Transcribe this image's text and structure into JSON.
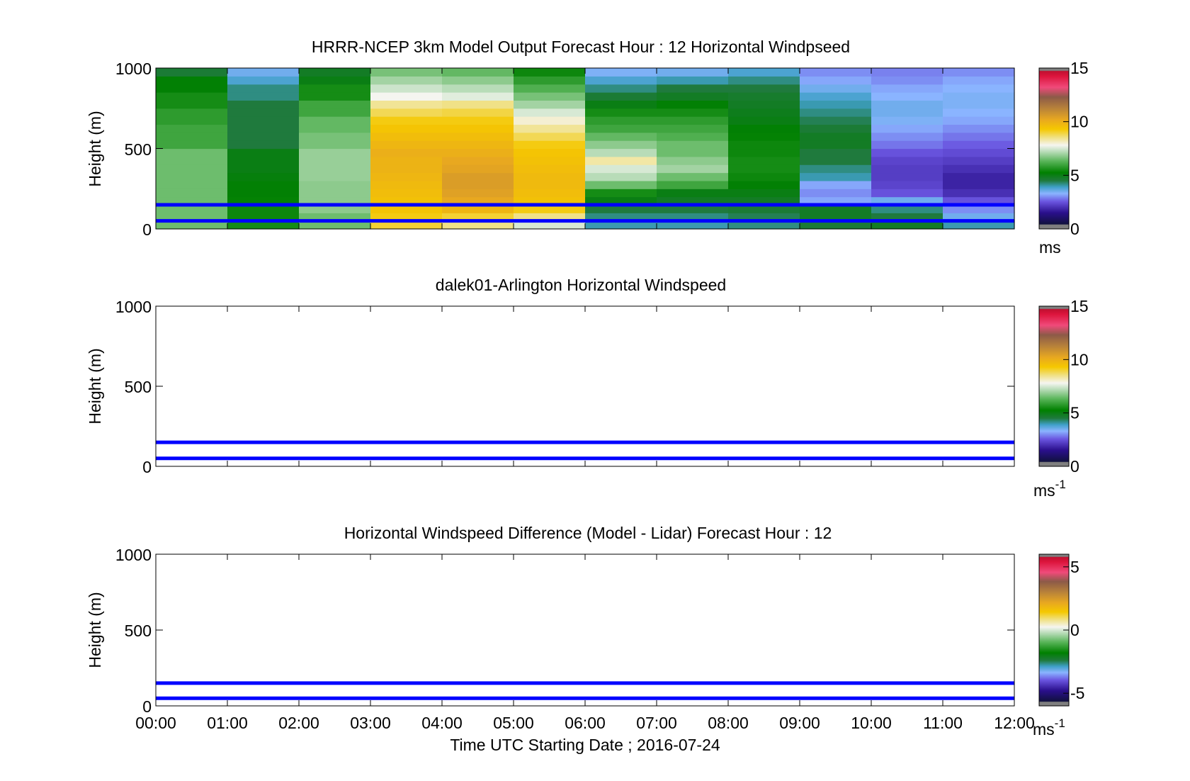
{
  "chart_data": [
    {
      "type": "heatmap",
      "title": "HRRR-NCEP 3km Model Output   Forecast Hour : 12 Horizontal Windpseed",
      "ylabel": "Height (m)",
      "xlabel": "",
      "ylim": [
        0,
        1000
      ],
      "yticks": [
        "0",
        "500",
        "1000"
      ],
      "xlim_hours": [
        0,
        12
      ],
      "colorbar": {
        "ticks": [
          "0",
          "5",
          "10",
          "15"
        ],
        "tick_values": [
          0,
          5,
          10,
          15
        ],
        "range": [
          0,
          15
        ],
        "unit": "ms",
        "unit_sup": ""
      },
      "rows_bottom_to_top": [
        0,
        50,
        100,
        150,
        200,
        250,
        300,
        350,
        400,
        450,
        500,
        550,
        600,
        650,
        700,
        750,
        800,
        850,
        900,
        950,
        1000
      ],
      "grid_columns_hourly_bottom_to_top": [
        [
          6.5,
          6.5,
          6.5,
          6.5,
          6.5,
          6.5,
          6.5,
          6.5,
          6.5,
          6.5,
          6.0,
          6.0,
          6.0,
          5.8,
          5.8,
          5.5,
          5.5,
          5.2,
          5.2,
          4.6
        ],
        [
          5.5,
          5.4,
          5.4,
          5.3,
          5.2,
          5.2,
          5.1,
          5.0,
          5.0,
          5.0,
          4.5,
          4.5,
          4.5,
          4.5,
          4.5,
          4.5,
          4.2,
          4.2,
          3.8,
          3.5
        ],
        [
          6.5,
          6.5,
          6.8,
          6.8,
          6.8,
          6.8,
          6.9,
          6.9,
          6.9,
          6.9,
          6.6,
          6.6,
          6.4,
          6.4,
          6.0,
          6.0,
          5.5,
          5.5,
          5.0,
          4.8
        ],
        [
          9.0,
          9.2,
          9.4,
          9.5,
          9.6,
          9.7,
          9.8,
          9.9,
          9.9,
          10.0,
          9.8,
          9.6,
          9.4,
          9.2,
          8.8,
          8.4,
          7.8,
          7.4,
          7.0,
          6.6
        ],
        [
          8.5,
          9.0,
          9.8,
          10.2,
          10.4,
          10.5,
          10.5,
          10.3,
          10.2,
          10.0,
          9.8,
          9.6,
          9.4,
          9.2,
          8.9,
          8.5,
          7.6,
          7.2,
          6.8,
          6.4
        ],
        [
          7.5,
          8.5,
          9.2,
          9.5,
          9.6,
          9.7,
          9.7,
          9.6,
          9.5,
          9.4,
          9.2,
          8.8,
          8.4,
          8.0,
          7.5,
          7.0,
          6.6,
          6.2,
          5.8,
          5.4
        ],
        [
          4.0,
          4.2,
          4.5,
          5.0,
          5.5,
          6.5,
          7.2,
          7.5,
          8.3,
          7.2,
          6.8,
          6.4,
          6.0,
          5.8,
          5.5,
          5.0,
          4.6,
          4.2,
          3.8,
          3.4
        ],
        [
          4.0,
          4.2,
          4.5,
          4.8,
          5.0,
          6.0,
          6.5,
          7.0,
          6.8,
          6.5,
          6.5,
          6.2,
          6.0,
          5.8,
          5.5,
          5.2,
          4.8,
          4.5,
          4.0,
          3.5
        ],
        [
          4.2,
          4.4,
          4.6,
          4.8,
          5.0,
          5.2,
          5.4,
          5.5,
          5.5,
          5.4,
          5.4,
          5.3,
          5.2,
          5.0,
          4.9,
          4.8,
          4.7,
          4.5,
          4.2,
          3.8
        ],
        [
          4.6,
          4.8,
          4.8,
          3.2,
          3.0,
          3.2,
          4.0,
          4.2,
          4.5,
          4.5,
          4.8,
          4.8,
          4.6,
          4.4,
          4.2,
          4.0,
          3.8,
          3.5,
          3.2,
          3.0
        ],
        [
          4.8,
          4.5,
          4.2,
          3.5,
          2.5,
          2.3,
          2.2,
          2.2,
          2.3,
          2.5,
          2.8,
          3.0,
          3.2,
          3.4,
          3.5,
          3.5,
          3.3,
          3.2,
          3.0,
          2.9
        ],
        [
          4.0,
          3.5,
          3.0,
          2.5,
          2.0,
          1.8,
          1.8,
          2.0,
          2.2,
          2.4,
          2.6,
          2.8,
          3.0,
          3.2,
          3.3,
          3.4,
          3.4,
          3.3,
          3.2,
          3.0
        ]
      ],
      "overlay_lines_m": [
        50,
        150
      ],
      "overlay_color": "#0000ff"
    },
    {
      "type": "heatmap",
      "title": "dalek01-Arlington  Horizontal Windspeed",
      "ylabel": "Height (m)",
      "xlabel": "",
      "ylim": [
        0,
        1000
      ],
      "yticks": [
        "0",
        "500",
        "1000"
      ],
      "xlim_hours": [
        0,
        12
      ],
      "colorbar": {
        "ticks": [
          "0",
          "5",
          "10",
          "15"
        ],
        "tick_values": [
          0,
          5,
          10,
          15
        ],
        "range": [
          0,
          15
        ],
        "unit": "ms",
        "unit_sup": "-1"
      },
      "grid_columns_hourly_bottom_to_top": [],
      "overlay_lines_m": [
        50,
        150
      ],
      "overlay_color": "#0000ff"
    },
    {
      "type": "heatmap",
      "title": "Horizontal Windspeed Difference (Model - Lidar) Forecast Hour : 12",
      "ylabel": "Height (m)",
      "xlabel": "Time UTC  Starting Date ; 2016-07-24",
      "ylim": [
        0,
        1000
      ],
      "yticks": [
        "0",
        "500",
        "1000"
      ],
      "xlim_hours": [
        0,
        12
      ],
      "xticks": [
        "00:00",
        "01:00",
        "02:00",
        "03:00",
        "04:00",
        "05:00",
        "06:00",
        "07:00",
        "08:00",
        "09:00",
        "10:00",
        "11:00",
        "12:00"
      ],
      "colorbar": {
        "ticks": [
          "-5",
          "0",
          "5"
        ],
        "tick_values": [
          -5,
          0,
          5
        ],
        "range": [
          -6,
          6
        ],
        "unit": "ms",
        "unit_sup": "-1"
      },
      "grid_columns_hourly_bottom_to_top": [],
      "overlay_lines_m": [
        50,
        150
      ],
      "overlay_color": "#0000ff"
    }
  ]
}
